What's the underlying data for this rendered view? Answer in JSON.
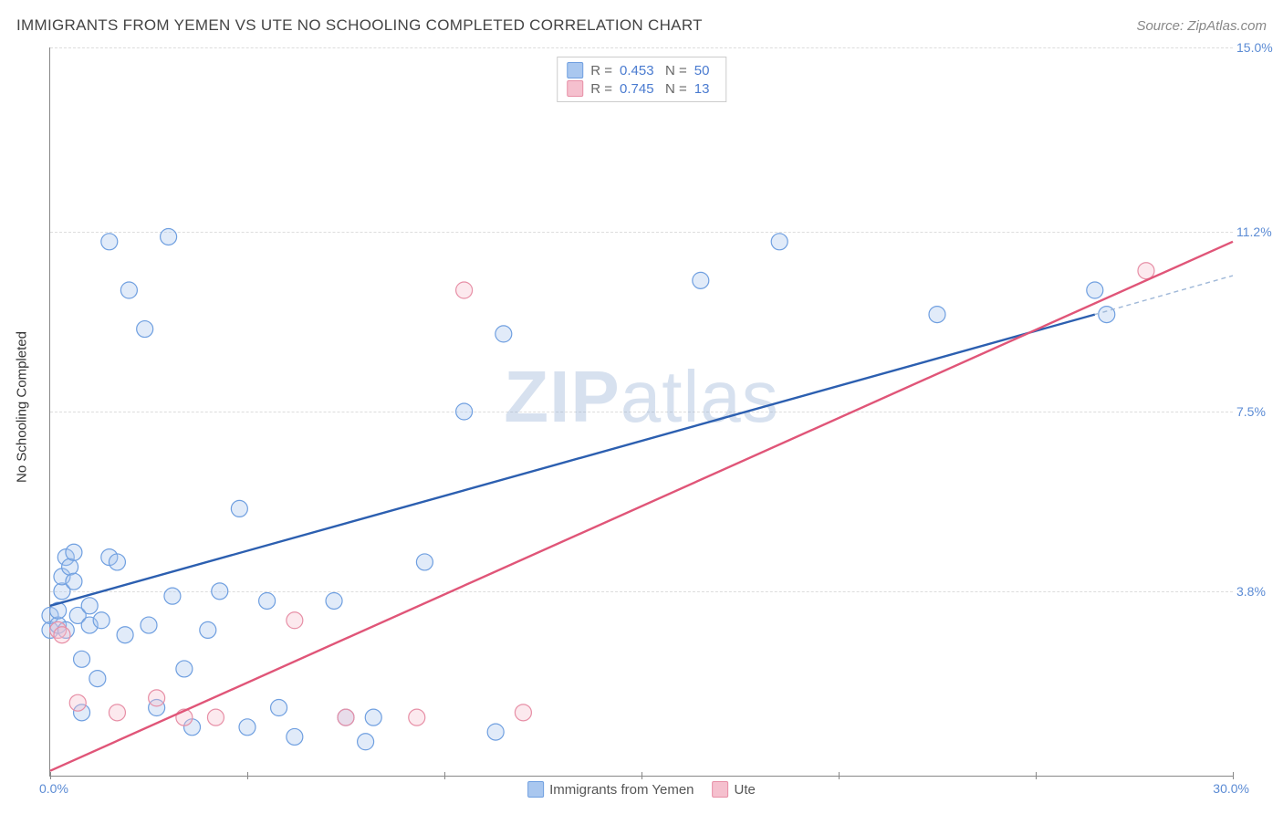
{
  "title": "IMMIGRANTS FROM YEMEN VS UTE NO SCHOOLING COMPLETED CORRELATION CHART",
  "source": "Source: ZipAtlas.com",
  "y_axis_title": "No Schooling Completed",
  "watermark_prefix": "ZIP",
  "watermark_suffix": "atlas",
  "chart": {
    "type": "scatter",
    "background_color": "#ffffff",
    "grid_color": "#dddddd",
    "axis_color": "#888888",
    "xlim": [
      0,
      30
    ],
    "ylim": [
      0,
      15
    ],
    "x_tick_step": 5,
    "y_ticks": [
      3.8,
      7.5,
      11.2,
      15.0
    ],
    "x_label_min": "0.0%",
    "x_label_max": "30.0%",
    "y_tick_labels": [
      "3.8%",
      "7.5%",
      "11.2%",
      "15.0%"
    ],
    "label_color": "#5b8bd4",
    "label_fontsize": 14,
    "title_color": "#444444",
    "title_fontsize": 17,
    "marker_radius": 9,
    "marker_stroke_width": 1.2,
    "marker_fill_opacity": 0.35,
    "series": [
      {
        "name": "Immigrants from Yemen",
        "color_stroke": "#6f9fe0",
        "color_fill": "#a9c7ef",
        "line_color": "#2c5fb0",
        "dash_color": "#9fb8d8",
        "r_value": "0.453",
        "n_value": "50",
        "trend": {
          "x1": 0,
          "y1": 3.5,
          "x2": 26.5,
          "y2": 9.5
        },
        "dash_ext": {
          "x1": 26.5,
          "y1": 9.5,
          "x2": 30,
          "y2": 10.3
        },
        "points": [
          [
            0.0,
            3.0
          ],
          [
            0.0,
            3.3
          ],
          [
            0.2,
            3.1
          ],
          [
            0.2,
            3.4
          ],
          [
            0.3,
            3.8
          ],
          [
            0.3,
            4.1
          ],
          [
            0.4,
            3.0
          ],
          [
            0.4,
            4.5
          ],
          [
            0.5,
            4.3
          ],
          [
            0.6,
            4.6
          ],
          [
            0.6,
            4.0
          ],
          [
            0.7,
            3.3
          ],
          [
            0.8,
            2.4
          ],
          [
            0.8,
            1.3
          ],
          [
            1.0,
            3.1
          ],
          [
            1.0,
            3.5
          ],
          [
            1.2,
            2.0
          ],
          [
            1.3,
            3.2
          ],
          [
            1.5,
            4.5
          ],
          [
            1.5,
            11.0
          ],
          [
            1.7,
            4.4
          ],
          [
            1.9,
            2.9
          ],
          [
            2.0,
            10.0
          ],
          [
            2.4,
            9.2
          ],
          [
            2.5,
            3.1
          ],
          [
            2.7,
            1.4
          ],
          [
            3.0,
            11.1
          ],
          [
            3.1,
            3.7
          ],
          [
            3.4,
            2.2
          ],
          [
            3.6,
            1.0
          ],
          [
            4.0,
            3.0
          ],
          [
            4.3,
            3.8
          ],
          [
            4.8,
            5.5
          ],
          [
            5.0,
            1.0
          ],
          [
            5.5,
            3.6
          ],
          [
            5.8,
            1.4
          ],
          [
            6.2,
            0.8
          ],
          [
            7.2,
            3.6
          ],
          [
            7.5,
            1.2
          ],
          [
            8.0,
            0.7
          ],
          [
            8.2,
            1.2
          ],
          [
            9.5,
            4.4
          ],
          [
            10.5,
            7.5
          ],
          [
            11.3,
            0.9
          ],
          [
            11.5,
            9.1
          ],
          [
            16.5,
            10.2
          ],
          [
            18.5,
            11.0
          ],
          [
            22.5,
            9.5
          ],
          [
            26.5,
            10.0
          ],
          [
            26.8,
            9.5
          ]
        ]
      },
      {
        "name": "Ute",
        "color_stroke": "#e78fa6",
        "color_fill": "#f5c0ce",
        "line_color": "#e05578",
        "dash_color": "#e8aabb",
        "r_value": "0.745",
        "n_value": "13",
        "trend": {
          "x1": 0,
          "y1": 0.1,
          "x2": 30,
          "y2": 11.0
        },
        "dash_ext": null,
        "points": [
          [
            0.2,
            3.0
          ],
          [
            0.3,
            2.9
          ],
          [
            0.7,
            1.5
          ],
          [
            1.7,
            1.3
          ],
          [
            2.7,
            1.6
          ],
          [
            3.4,
            1.2
          ],
          [
            4.2,
            1.2
          ],
          [
            6.2,
            3.2
          ],
          [
            7.5,
            1.2
          ],
          [
            9.3,
            1.2
          ],
          [
            10.5,
            10.0
          ],
          [
            12.0,
            1.3
          ],
          [
            27.8,
            10.4
          ]
        ]
      }
    ]
  },
  "legend_bottom": [
    {
      "label": "Immigrants from Yemen",
      "fill": "#a9c7ef",
      "stroke": "#6f9fe0"
    },
    {
      "label": "Ute",
      "fill": "#f5c0ce",
      "stroke": "#e78fa6"
    }
  ]
}
